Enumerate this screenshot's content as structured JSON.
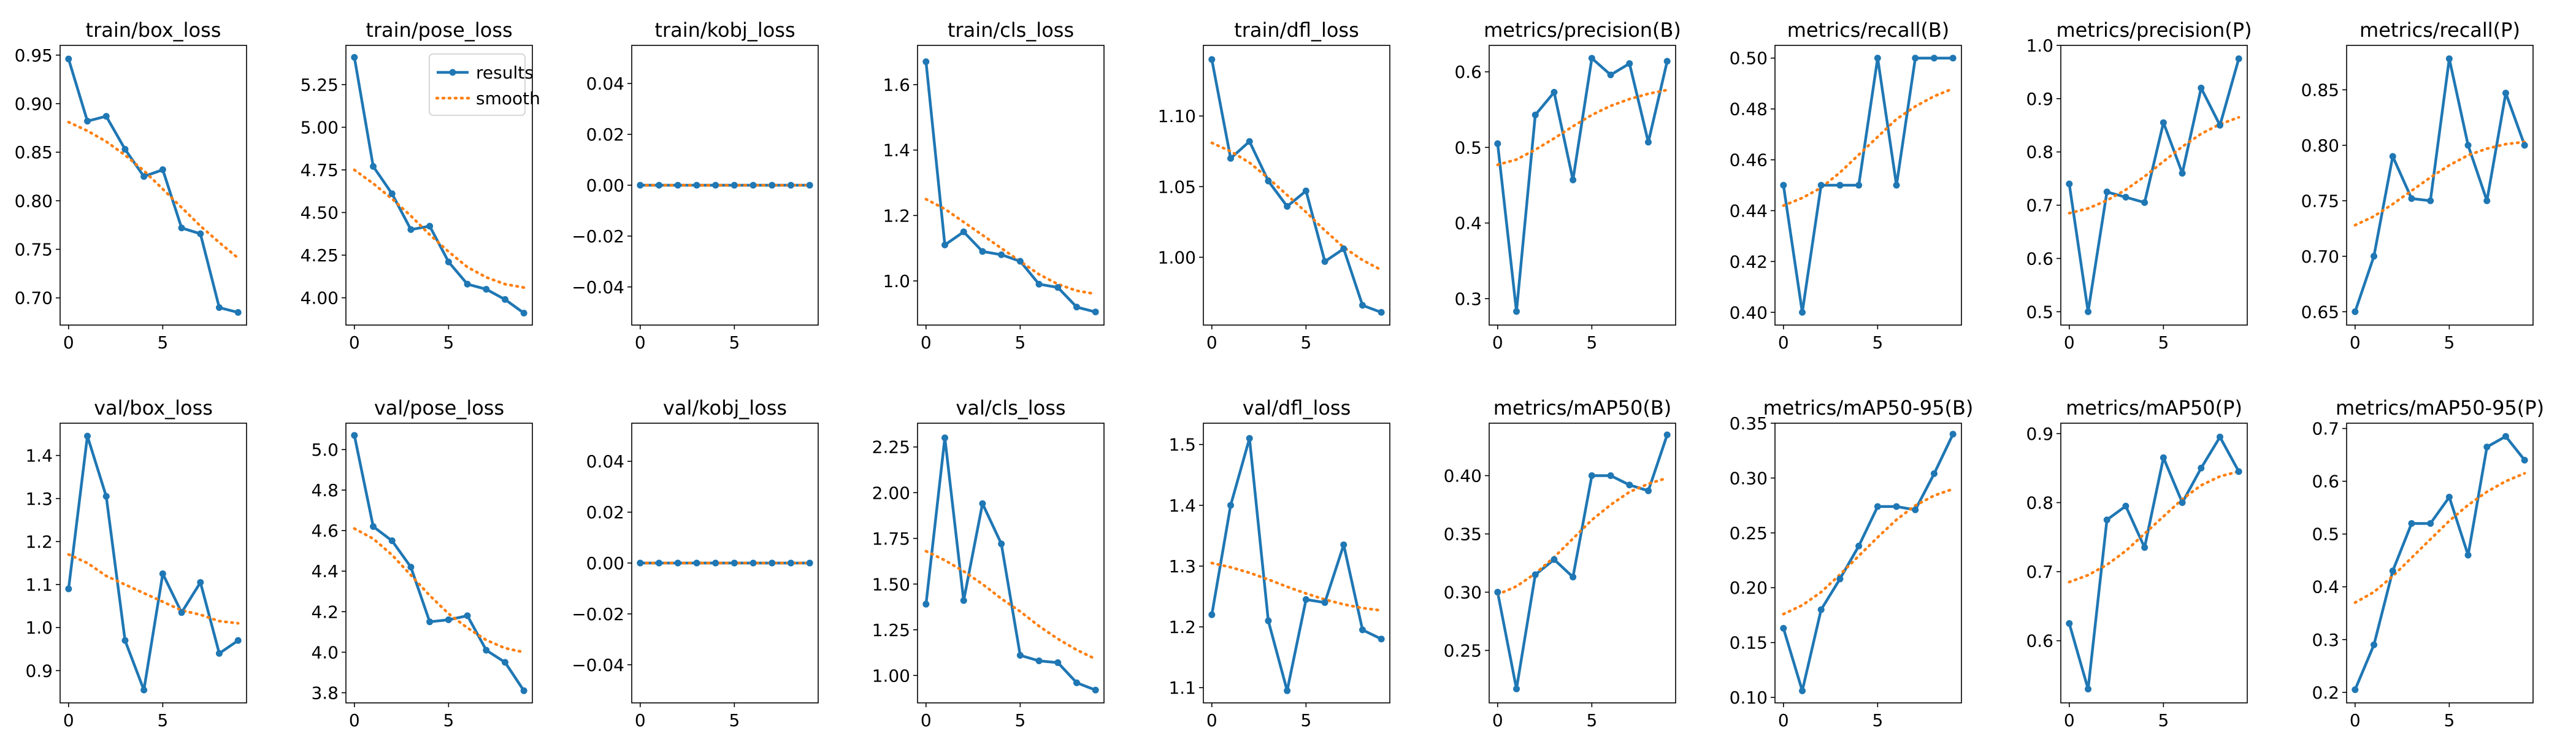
{
  "figure": {
    "legend": {
      "results_label": "results",
      "smooth_label": "smooth",
      "placement": "upper right",
      "panel": "train/pose_loss"
    },
    "colors": {
      "results": "#1f77b4",
      "smooth": "#ff7f0e",
      "axes": "#000000",
      "background": "#ffffff"
    },
    "grid": false
  },
  "chart_data": [
    {
      "type": "line",
      "title": "train/box_loss",
      "x": [
        0,
        1,
        2,
        3,
        4,
        5,
        6,
        7,
        8,
        9
      ],
      "series": [
        {
          "name": "results",
          "values": [
            0.946,
            0.882,
            0.887,
            0.853,
            0.825,
            0.832,
            0.772,
            0.766,
            0.69,
            0.685
          ]
        },
        {
          "name": "smooth",
          "values": [
            0.881,
            0.872,
            0.861,
            0.847,
            0.831,
            0.812,
            0.793,
            0.774,
            0.757,
            0.741
          ]
        }
      ],
      "xlim": [
        -0.45,
        9.45
      ],
      "ylim": [
        0.672,
        0.96
      ],
      "xticks": [
        0,
        5
      ],
      "yticks": [
        0.7,
        0.75,
        0.8,
        0.85,
        0.9,
        0.95
      ]
    },
    {
      "type": "line",
      "title": "train/pose_loss",
      "x": [
        0,
        1,
        2,
        3,
        4,
        5,
        6,
        7,
        8,
        9
      ],
      "series": [
        {
          "name": "results",
          "values": [
            5.41,
            4.77,
            4.61,
            4.4,
            4.42,
            4.21,
            4.08,
            4.05,
            3.99,
            3.91
          ]
        },
        {
          "name": "smooth",
          "values": [
            4.75,
            4.67,
            4.58,
            4.48,
            4.37,
            4.27,
            4.18,
            4.12,
            4.08,
            4.06
          ]
        }
      ],
      "xlim": [
        -0.45,
        9.45
      ],
      "ylim": [
        3.84,
        5.48
      ],
      "xticks": [
        0,
        5
      ],
      "yticks": [
        4.0,
        4.25,
        4.5,
        4.75,
        5.0,
        5.25
      ]
    },
    {
      "type": "line",
      "title": "train/kobj_loss",
      "x": [
        0,
        1,
        2,
        3,
        4,
        5,
        6,
        7,
        8,
        9
      ],
      "series": [
        {
          "name": "results",
          "values": [
            0,
            0,
            0,
            0,
            0,
            0,
            0,
            0,
            0,
            0
          ]
        },
        {
          "name": "smooth",
          "values": [
            0,
            0,
            0,
            0,
            0,
            0,
            0,
            0,
            0,
            0
          ]
        }
      ],
      "xlim": [
        -0.45,
        9.45
      ],
      "ylim": [
        -0.055,
        0.055
      ],
      "xticks": [
        0,
        5
      ],
      "yticks": [
        -0.04,
        -0.02,
        0.0,
        0.02,
        0.04
      ]
    },
    {
      "type": "line",
      "title": "train/cls_loss",
      "x": [
        0,
        1,
        2,
        3,
        4,
        5,
        6,
        7,
        8,
        9
      ],
      "series": [
        {
          "name": "results",
          "values": [
            1.67,
            1.11,
            1.15,
            1.09,
            1.08,
            1.06,
            0.99,
            0.98,
            0.92,
            0.905
          ]
        },
        {
          "name": "smooth",
          "values": [
            1.25,
            1.22,
            1.18,
            1.14,
            1.1,
            1.06,
            1.02,
            0.99,
            0.97,
            0.96
          ]
        }
      ],
      "xlim": [
        -0.45,
        9.45
      ],
      "ylim": [
        0.865,
        1.72
      ],
      "xticks": [
        0,
        5
      ],
      "yticks": [
        1.0,
        1.2,
        1.4,
        1.6
      ]
    },
    {
      "type": "line",
      "title": "train/dfl_loss",
      "x": [
        0,
        1,
        2,
        3,
        4,
        5,
        6,
        7,
        8,
        9
      ],
      "series": [
        {
          "name": "results",
          "values": [
            1.14,
            1.07,
            1.082,
            1.054,
            1.036,
            1.047,
            0.997,
            1.006,
            0.966,
            0.961
          ]
        },
        {
          "name": "smooth",
          "values": [
            1.081,
            1.075,
            1.067,
            1.056,
            1.044,
            1.032,
            1.019,
            1.007,
            0.998,
            0.991
          ]
        }
      ],
      "xlim": [
        -0.45,
        9.45
      ],
      "ylim": [
        0.952,
        1.15
      ],
      "xticks": [
        0,
        5
      ],
      "yticks": [
        1.0,
        1.05,
        1.1
      ]
    },
    {
      "type": "line",
      "title": "metrics/precision(B)",
      "x": [
        0,
        1,
        2,
        3,
        4,
        5,
        6,
        7,
        8,
        9
      ],
      "series": [
        {
          "name": "results",
          "values": [
            0.505,
            0.283,
            0.543,
            0.573,
            0.457,
            0.618,
            0.596,
            0.611,
            0.507,
            0.614
          ]
        },
        {
          "name": "smooth",
          "values": [
            0.477,
            0.484,
            0.497,
            0.512,
            0.528,
            0.543,
            0.555,
            0.564,
            0.571,
            0.576
          ]
        }
      ],
      "xlim": [
        -0.45,
        9.45
      ],
      "ylim": [
        0.265,
        0.635
      ],
      "xticks": [
        0,
        5
      ],
      "yticks": [
        0.3,
        0.4,
        0.5,
        0.6
      ]
    },
    {
      "type": "line",
      "title": "metrics/recall(B)",
      "x": [
        0,
        1,
        2,
        3,
        4,
        5,
        6,
        7,
        8,
        9
      ],
      "series": [
        {
          "name": "results",
          "values": [
            0.45,
            0.4,
            0.45,
            0.45,
            0.45,
            0.5,
            0.45,
            0.5,
            0.5,
            0.5
          ]
        },
        {
          "name": "smooth",
          "values": [
            0.442,
            0.445,
            0.449,
            0.455,
            0.462,
            0.469,
            0.476,
            0.481,
            0.485,
            0.488
          ]
        }
      ],
      "xlim": [
        -0.45,
        9.45
      ],
      "ylim": [
        0.395,
        0.505
      ],
      "xticks": [
        0,
        5
      ],
      "yticks": [
        0.4,
        0.42,
        0.44,
        0.46,
        0.48,
        0.5
      ]
    },
    {
      "type": "line",
      "title": "metrics/precision(P)",
      "x": [
        0,
        1,
        2,
        3,
        4,
        5,
        6,
        7,
        8,
        9
      ],
      "series": [
        {
          "name": "results",
          "values": [
            0.74,
            0.5,
            0.725,
            0.715,
            0.705,
            0.855,
            0.76,
            0.92,
            0.85,
            0.975
          ]
        },
        {
          "name": "smooth",
          "values": [
            0.685,
            0.694,
            0.709,
            0.729,
            0.754,
            0.782,
            0.81,
            0.834,
            0.852,
            0.865
          ]
        }
      ],
      "xlim": [
        -0.45,
        9.45
      ],
      "ylim": [
        0.475,
        1.0
      ],
      "xticks": [
        0,
        5
      ],
      "yticks": [
        0.5,
        0.6,
        0.7,
        0.8,
        0.9,
        1.0
      ]
    },
    {
      "type": "line",
      "title": "metrics/recall(P)",
      "x": [
        0,
        1,
        2,
        3,
        4,
        5,
        6,
        7,
        8,
        9
      ],
      "series": [
        {
          "name": "results",
          "values": [
            0.65,
            0.7,
            0.79,
            0.752,
            0.75,
            0.878,
            0.8,
            0.75,
            0.847,
            0.8
          ]
        },
        {
          "name": "smooth",
          "values": [
            0.728,
            0.736,
            0.747,
            0.759,
            0.771,
            0.782,
            0.791,
            0.797,
            0.801,
            0.803
          ]
        }
      ],
      "xlim": [
        -0.45,
        9.45
      ],
      "ylim": [
        0.638,
        0.89
      ],
      "xticks": [
        0,
        5
      ],
      "yticks": [
        0.65,
        0.7,
        0.75,
        0.8,
        0.85
      ]
    },
    {
      "type": "line",
      "title": "val/box_loss",
      "x": [
        0,
        1,
        2,
        3,
        4,
        5,
        6,
        7,
        8,
        9
      ],
      "series": [
        {
          "name": "results",
          "values": [
            1.09,
            1.445,
            1.305,
            0.97,
            0.855,
            1.125,
            1.035,
            1.105,
            0.94,
            0.97
          ]
        },
        {
          "name": "smooth",
          "values": [
            1.17,
            1.15,
            1.12,
            1.1,
            1.08,
            1.06,
            1.04,
            1.03,
            1.015,
            1.01
          ]
        }
      ],
      "xlim": [
        -0.45,
        9.45
      ],
      "ylim": [
        0.825,
        1.475
      ],
      "xticks": [
        0,
        5
      ],
      "yticks": [
        0.9,
        1.0,
        1.1,
        1.2,
        1.3,
        1.4
      ]
    },
    {
      "type": "line",
      "title": "val/pose_loss",
      "x": [
        0,
        1,
        2,
        3,
        4,
        5,
        6,
        7,
        8,
        9
      ],
      "series": [
        {
          "name": "results",
          "values": [
            5.07,
            4.62,
            4.55,
            4.42,
            4.15,
            4.16,
            4.18,
            4.01,
            3.95,
            3.81
          ]
        },
        {
          "name": "smooth",
          "values": [
            4.61,
            4.56,
            4.48,
            4.38,
            4.28,
            4.19,
            4.12,
            4.06,
            4.02,
            4.0
          ]
        }
      ],
      "xlim": [
        -0.45,
        9.45
      ],
      "ylim": [
        3.75,
        5.13
      ],
      "xticks": [
        0,
        5
      ],
      "yticks": [
        3.8,
        4.0,
        4.2,
        4.4,
        4.6,
        4.8,
        5.0
      ]
    },
    {
      "type": "line",
      "title": "val/kobj_loss",
      "x": [
        0,
        1,
        2,
        3,
        4,
        5,
        6,
        7,
        8,
        9
      ],
      "series": [
        {
          "name": "results",
          "values": [
            0,
            0,
            0,
            0,
            0,
            0,
            0,
            0,
            0,
            0
          ]
        },
        {
          "name": "smooth",
          "values": [
            0,
            0,
            0,
            0,
            0,
            0,
            0,
            0,
            0,
            0
          ]
        }
      ],
      "xlim": [
        -0.45,
        9.45
      ],
      "ylim": [
        -0.055,
        0.055
      ],
      "xticks": [
        0,
        5
      ],
      "yticks": [
        -0.04,
        -0.02,
        0.0,
        0.02,
        0.04
      ]
    },
    {
      "type": "line",
      "title": "val/cls_loss",
      "x": [
        0,
        1,
        2,
        3,
        4,
        5,
        6,
        7,
        8,
        9
      ],
      "series": [
        {
          "name": "results",
          "values": [
            1.39,
            2.3,
            1.41,
            1.94,
            1.72,
            1.11,
            1.08,
            1.07,
            0.96,
            0.92
          ]
        },
        {
          "name": "smooth",
          "values": [
            1.68,
            1.63,
            1.57,
            1.5,
            1.42,
            1.35,
            1.27,
            1.2,
            1.14,
            1.09
          ]
        }
      ],
      "xlim": [
        -0.45,
        9.45
      ],
      "ylim": [
        0.85,
        2.38
      ],
      "xticks": [
        0,
        5
      ],
      "yticks": [
        1.0,
        1.25,
        1.5,
        1.75,
        2.0,
        2.25
      ]
    },
    {
      "type": "line",
      "title": "val/dfl_loss",
      "x": [
        0,
        1,
        2,
        3,
        4,
        5,
        6,
        7,
        8,
        9
      ],
      "series": [
        {
          "name": "results",
          "values": [
            1.22,
            1.4,
            1.51,
            1.21,
            1.095,
            1.245,
            1.24,
            1.335,
            1.195,
            1.18
          ]
        },
        {
          "name": "smooth",
          "values": [
            1.305,
            1.298,
            1.289,
            1.278,
            1.266,
            1.255,
            1.245,
            1.237,
            1.231,
            1.227
          ]
        }
      ],
      "xlim": [
        -0.45,
        9.45
      ],
      "ylim": [
        1.075,
        1.535
      ],
      "xticks": [
        0,
        5
      ],
      "yticks": [
        1.1,
        1.2,
        1.3,
        1.4,
        1.5
      ]
    },
    {
      "type": "line",
      "title": "metrics/mAP50(B)",
      "x": [
        0,
        1,
        2,
        3,
        4,
        5,
        6,
        7,
        8,
        9
      ],
      "series": [
        {
          "name": "results",
          "values": [
            0.3,
            0.217,
            0.315,
            0.328,
            0.313,
            0.4,
            0.4,
            0.392,
            0.387,
            0.435
          ]
        },
        {
          "name": "smooth",
          "values": [
            0.298,
            0.305,
            0.316,
            0.33,
            0.346,
            0.362,
            0.375,
            0.386,
            0.393,
            0.398
          ]
        }
      ],
      "xlim": [
        -0.45,
        9.45
      ],
      "ylim": [
        0.205,
        0.445
      ],
      "xticks": [
        0,
        5
      ],
      "yticks": [
        0.25,
        0.3,
        0.35,
        0.4
      ]
    },
    {
      "type": "line",
      "title": "metrics/mAP50-95(B)",
      "x": [
        0,
        1,
        2,
        3,
        4,
        5,
        6,
        7,
        8,
        9
      ],
      "series": [
        {
          "name": "results",
          "values": [
            0.163,
            0.106,
            0.18,
            0.208,
            0.238,
            0.274,
            0.274,
            0.271,
            0.304,
            0.34
          ]
        },
        {
          "name": "smooth",
          "values": [
            0.176,
            0.184,
            0.196,
            0.212,
            0.229,
            0.246,
            0.262,
            0.275,
            0.284,
            0.29
          ]
        }
      ],
      "xlim": [
        -0.45,
        9.45
      ],
      "ylim": [
        0.095,
        0.35
      ],
      "xticks": [
        0,
        5
      ],
      "yticks": [
        0.1,
        0.15,
        0.2,
        0.25,
        0.3,
        0.35
      ]
    },
    {
      "type": "line",
      "title": "metrics/mAP50(P)",
      "x": [
        0,
        1,
        2,
        3,
        4,
        5,
        6,
        7,
        8,
        9
      ],
      "series": [
        {
          "name": "results",
          "values": [
            0.625,
            0.53,
            0.775,
            0.795,
            0.735,
            0.865,
            0.8,
            0.85,
            0.895,
            0.845
          ]
        },
        {
          "name": "smooth",
          "values": [
            0.685,
            0.695,
            0.71,
            0.73,
            0.755,
            0.78,
            0.805,
            0.825,
            0.838,
            0.845
          ]
        }
      ],
      "xlim": [
        -0.45,
        9.45
      ],
      "ylim": [
        0.51,
        0.915
      ],
      "xticks": [
        0,
        5
      ],
      "yticks": [
        0.6,
        0.7,
        0.8,
        0.9
      ]
    },
    {
      "type": "line",
      "title": "metrics/mAP50-95(P)",
      "x": [
        0,
        1,
        2,
        3,
        4,
        5,
        6,
        7,
        8,
        9
      ],
      "series": [
        {
          "name": "results",
          "values": [
            0.205,
            0.29,
            0.43,
            0.52,
            0.52,
            0.57,
            0.46,
            0.665,
            0.685,
            0.64
          ]
        },
        {
          "name": "smooth",
          "values": [
            0.37,
            0.39,
            0.42,
            0.455,
            0.49,
            0.525,
            0.555,
            0.58,
            0.6,
            0.615
          ]
        }
      ],
      "xlim": [
        -0.45,
        9.45
      ],
      "ylim": [
        0.18,
        0.71
      ],
      "xticks": [
        0,
        5
      ],
      "yticks": [
        0.2,
        0.3,
        0.4,
        0.5,
        0.6,
        0.7
      ]
    }
  ]
}
